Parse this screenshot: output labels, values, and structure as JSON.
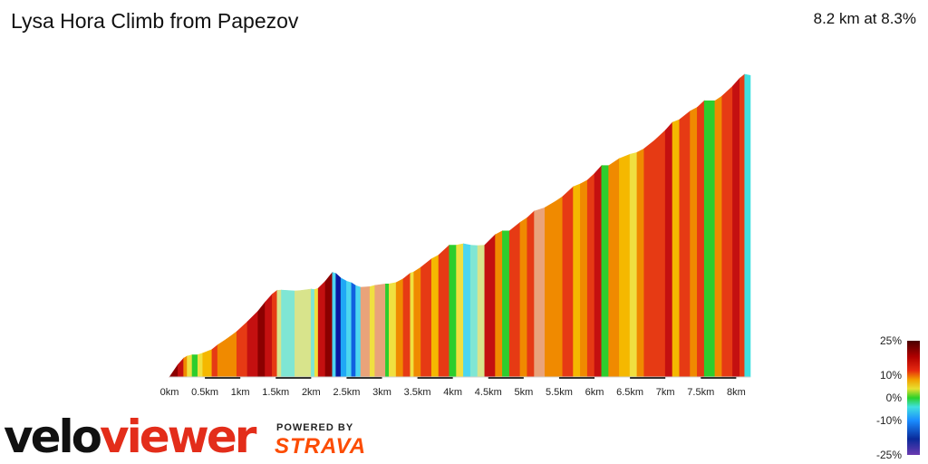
{
  "header": {
    "title": "Lysa Hora Climb from Papezov",
    "summary": "8.2 km at 8.3%"
  },
  "branding": {
    "velo": "velo",
    "viewer": "viewer",
    "powered_by": "POWERED BY",
    "strava": "STRAVA"
  },
  "chart_data": {
    "type": "area",
    "title": "Lysa Hora Climb from Papezov",
    "subtitle": "8.2 km at 8.3%",
    "xlabel": "",
    "ylabel": "",
    "x_unit": "km",
    "xlim": [
      0,
      8.2
    ],
    "x_ticks": [
      0,
      0.5,
      1,
      1.5,
      2,
      2.5,
      3,
      3.5,
      4,
      4.5,
      5,
      5.5,
      6,
      6.5,
      7,
      7.5,
      8
    ],
    "x_tick_labels": [
      "0km",
      "0.5km",
      "1km",
      "1.5km",
      "2km",
      "2.5km",
      "3km",
      "3.5km",
      "4km",
      "4.5km",
      "5km",
      "5.5km",
      "6km",
      "6.5km",
      "7km",
      "7.5km",
      "8km"
    ],
    "grid": false,
    "legend_position": "bottom-right",
    "color_legend": {
      "labels": [
        "25%",
        "10%",
        "0%",
        "-10%",
        "-25%"
      ],
      "stops": [
        {
          "grade": 25,
          "color": "#4a0000"
        },
        {
          "grade": 18,
          "color": "#b00000"
        },
        {
          "grade": 12,
          "color": "#e62a10"
        },
        {
          "grade": 8,
          "color": "#f2a000"
        },
        {
          "grade": 4,
          "color": "#e8e030"
        },
        {
          "grade": 0,
          "color": "#2ad12a"
        },
        {
          "grade": -4,
          "color": "#40e0e0"
        },
        {
          "grade": -10,
          "color": "#1a8cff"
        },
        {
          "grade": -18,
          "color": "#0a2a9a"
        },
        {
          "grade": -25,
          "color": "#6a3ab0"
        }
      ]
    },
    "gradient_colors": [
      "#8b0000",
      "#c41010",
      "#e63a14",
      "#f08a00",
      "#f5b800",
      "#f0e040",
      "#2dcd2d",
      "#7fe6d4",
      "#4cd6f0",
      "#20a8f5",
      "#1060e0",
      "#0a1aa0",
      "#d8e48c",
      "#e9a37a"
    ],
    "segments": [
      {
        "x": [
          0.0,
          0.12
        ],
        "grade": 22,
        "color": "#8b0000"
      },
      {
        "x": [
          0.12,
          0.2
        ],
        "grade": 17,
        "color": "#c41010"
      },
      {
        "x": [
          0.2,
          0.25
        ],
        "grade": 9,
        "color": "#f08a00"
      },
      {
        "x": [
          0.25,
          0.32
        ],
        "grade": 4,
        "color": "#f0e040"
      },
      {
        "x": [
          0.32,
          0.4
        ],
        "grade": 0,
        "color": "#2dcd2d"
      },
      {
        "x": [
          0.4,
          0.47
        ],
        "grade": 5,
        "color": "#f0e040"
      },
      {
        "x": [
          0.47,
          0.6
        ],
        "grade": 6,
        "color": "#f5b800"
      },
      {
        "x": [
          0.6,
          0.68
        ],
        "grade": 12,
        "color": "#e63a14"
      },
      {
        "x": [
          0.68,
          0.8
        ],
        "grade": 10,
        "color": "#f08a00"
      },
      {
        "x": [
          0.8,
          0.95
        ],
        "grade": 11,
        "color": "#f08a00"
      },
      {
        "x": [
          0.95,
          1.1
        ],
        "grade": 14,
        "color": "#e63a14"
      },
      {
        "x": [
          1.1,
          1.25
        ],
        "grade": 15,
        "color": "#c41010"
      },
      {
        "x": [
          1.25,
          1.35
        ],
        "grade": 19,
        "color": "#8b0000"
      },
      {
        "x": [
          1.35,
          1.45
        ],
        "grade": 17,
        "color": "#c41010"
      },
      {
        "x": [
          1.45,
          1.52
        ],
        "grade": 12,
        "color": "#e63a14"
      },
      {
        "x": [
          1.52,
          1.58
        ],
        "grade": 1,
        "color": "#d8e48c"
      },
      {
        "x": [
          1.58,
          1.77
        ],
        "grade": -1,
        "color": "#7fe6d4"
      },
      {
        "x": [
          1.77,
          1.83
        ],
        "grade": 1,
        "color": "#d8e48c"
      },
      {
        "x": [
          1.83,
          2.0
        ],
        "grade": 2,
        "color": "#d8e48c"
      },
      {
        "x": [
          2.0,
          2.05
        ],
        "grade": -2,
        "color": "#7fe6d4"
      },
      {
        "x": [
          2.05,
          2.1
        ],
        "grade": 5,
        "color": "#f0e040"
      },
      {
        "x": [
          2.1,
          2.2
        ],
        "grade": 15,
        "color": "#c41010"
      },
      {
        "x": [
          2.2,
          2.3
        ],
        "grade": 19,
        "color": "#8b0000"
      },
      {
        "x": [
          2.3,
          2.35
        ],
        "grade": -5,
        "color": "#4cd6f0"
      },
      {
        "x": [
          2.35,
          2.42
        ],
        "grade": -14,
        "color": "#0a1aa0"
      },
      {
        "x": [
          2.42,
          2.5
        ],
        "grade": -8,
        "color": "#20a8f5"
      },
      {
        "x": [
          2.5,
          2.57
        ],
        "grade": -5,
        "color": "#4cd6f0"
      },
      {
        "x": [
          2.57,
          2.63
        ],
        "grade": -10,
        "color": "#1060e0"
      },
      {
        "x": [
          2.63,
          2.7
        ],
        "grade": -5,
        "color": "#4cd6f0"
      },
      {
        "x": [
          2.7,
          2.83
        ],
        "grade": 1,
        "color": "#e9a37a"
      },
      {
        "x": [
          2.83,
          2.9
        ],
        "grade": 4,
        "color": "#f0e040"
      },
      {
        "x": [
          2.9,
          3.05
        ],
        "grade": 2,
        "color": "#e9a37a"
      },
      {
        "x": [
          3.05,
          3.1
        ],
        "grade": 0,
        "color": "#2dcd2d"
      },
      {
        "x": [
          3.1,
          3.2
        ],
        "grade": 3,
        "color": "#f0e040"
      },
      {
        "x": [
          3.2,
          3.3
        ],
        "grade": 8,
        "color": "#f08a00"
      },
      {
        "x": [
          3.3,
          3.4
        ],
        "grade": 12,
        "color": "#e63a14"
      },
      {
        "x": [
          3.4,
          3.45
        ],
        "grade": 5,
        "color": "#f0e040"
      },
      {
        "x": [
          3.45,
          3.55
        ],
        "grade": 10,
        "color": "#f08a00"
      },
      {
        "x": [
          3.55,
          3.7
        ],
        "grade": 12,
        "color": "#e63a14"
      },
      {
        "x": [
          3.7,
          3.8
        ],
        "grade": 8,
        "color": "#f5b800"
      },
      {
        "x": [
          3.8,
          3.95
        ],
        "grade": 14,
        "color": "#e63a14"
      },
      {
        "x": [
          3.95,
          4.05
        ],
        "grade": 0,
        "color": "#2dcd2d"
      },
      {
        "x": [
          4.05,
          4.15
        ],
        "grade": 3,
        "color": "#f0e040"
      },
      {
        "x": [
          4.15,
          4.25
        ],
        "grade": -3,
        "color": "#4cd6f0"
      },
      {
        "x": [
          4.25,
          4.35
        ],
        "grade": -1,
        "color": "#7fe6d4"
      },
      {
        "x": [
          4.35,
          4.45
        ],
        "grade": 1,
        "color": "#d8e48c"
      },
      {
        "x": [
          4.45,
          4.6
        ],
        "grade": 15,
        "color": "#c41010"
      },
      {
        "x": [
          4.6,
          4.7
        ],
        "grade": 8,
        "color": "#f08a00"
      },
      {
        "x": [
          4.7,
          4.8
        ],
        "grade": 0,
        "color": "#2dcd2d"
      },
      {
        "x": [
          4.8,
          4.95
        ],
        "grade": 12,
        "color": "#e63a14"
      },
      {
        "x": [
          4.95,
          5.05
        ],
        "grade": 10,
        "color": "#f08a00"
      },
      {
        "x": [
          5.05,
          5.15
        ],
        "grade": 14,
        "color": "#e63a14"
      },
      {
        "x": [
          5.15,
          5.3
        ],
        "grade": 5,
        "color": "#e9a37a"
      },
      {
        "x": [
          5.3,
          5.45
        ],
        "grade": 9,
        "color": "#f08a00"
      },
      {
        "x": [
          5.45,
          5.55
        ],
        "grade": 10,
        "color": "#f08a00"
      },
      {
        "x": [
          5.55,
          5.7
        ],
        "grade": 14,
        "color": "#e63a14"
      },
      {
        "x": [
          5.7,
          5.8
        ],
        "grade": 6,
        "color": "#f5b800"
      },
      {
        "x": [
          5.8,
          5.9
        ],
        "grade": 8,
        "color": "#f08a00"
      },
      {
        "x": [
          5.9,
          6.0
        ],
        "grade": 14,
        "color": "#e63a14"
      },
      {
        "x": [
          6.0,
          6.1
        ],
        "grade": 17,
        "color": "#c41010"
      },
      {
        "x": [
          6.1,
          6.2
        ],
        "grade": 0,
        "color": "#2dcd2d"
      },
      {
        "x": [
          6.2,
          6.35
        ],
        "grade": 10,
        "color": "#f08a00"
      },
      {
        "x": [
          6.35,
          6.5
        ],
        "grade": 6,
        "color": "#f5b800"
      },
      {
        "x": [
          6.5,
          6.6
        ],
        "grade": 4,
        "color": "#f0e040"
      },
      {
        "x": [
          6.6,
          6.7
        ],
        "grade": 8,
        "color": "#f08a00"
      },
      {
        "x": [
          6.7,
          6.85
        ],
        "grade": 12,
        "color": "#e63a14"
      },
      {
        "x": [
          6.85,
          7.0
        ],
        "grade": 14,
        "color": "#e63a14"
      },
      {
        "x": [
          7.0,
          7.1
        ],
        "grade": 17,
        "color": "#c41010"
      },
      {
        "x": [
          7.1,
          7.2
        ],
        "grade": 6,
        "color": "#f5b800"
      },
      {
        "x": [
          7.2,
          7.35
        ],
        "grade": 12,
        "color": "#e63a14"
      },
      {
        "x": [
          7.35,
          7.45
        ],
        "grade": 8,
        "color": "#f08a00"
      },
      {
        "x": [
          7.45,
          7.55
        ],
        "grade": 14,
        "color": "#e63a14"
      },
      {
        "x": [
          7.55,
          7.7
        ],
        "grade": 0,
        "color": "#2dcd2d"
      },
      {
        "x": [
          7.7,
          7.8
        ],
        "grade": 10,
        "color": "#f08a00"
      },
      {
        "x": [
          7.8,
          7.95
        ],
        "grade": 14,
        "color": "#e63a14"
      },
      {
        "x": [
          7.95,
          8.05
        ],
        "grade": 17,
        "color": "#c41010"
      },
      {
        "x": [
          8.05,
          8.12
        ],
        "grade": 12,
        "color": "#e63a14"
      },
      {
        "x": [
          8.12,
          8.2
        ],
        "grade": -3,
        "color": "#40e0e0"
      }
    ]
  }
}
